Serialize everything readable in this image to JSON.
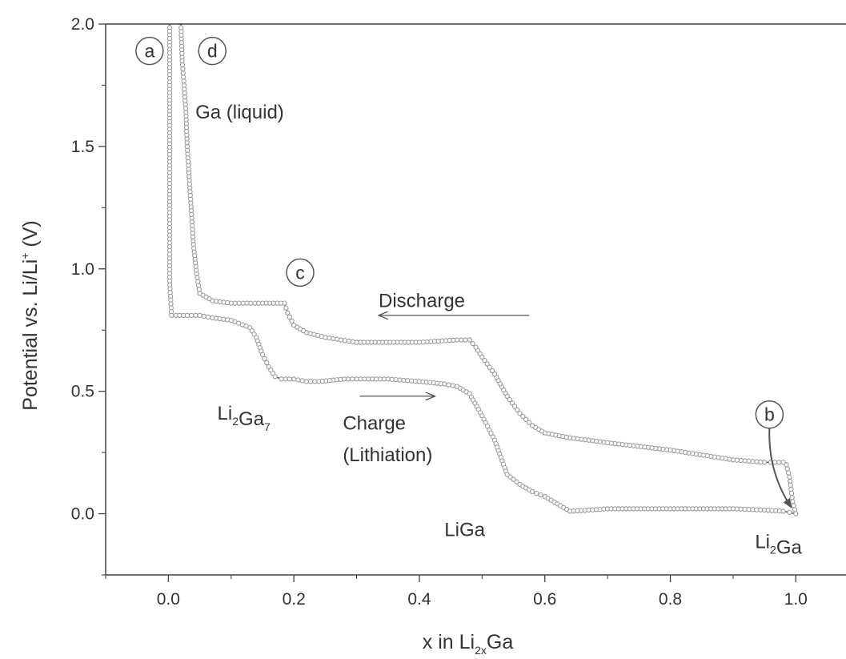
{
  "chart_data": {
    "type": "scatter",
    "title": "",
    "xlabel": "x in Li2xGa",
    "ylabel": "Potential vs. Li/Li+ (V)",
    "xlabel_parts": [
      {
        "text": "x in Li",
        "sub": false
      },
      {
        "text": "2x",
        "sub": true
      },
      {
        "text": "Ga",
        "sub": false
      }
    ],
    "ylabel_parts": [
      {
        "text": "Potential vs. Li/Li",
        "sup": false
      },
      {
        "text": "+",
        "sup": true
      },
      {
        "text": " (V)",
        "sup": false
      }
    ],
    "xlim": [
      -0.1,
      1.08
    ],
    "ylim": [
      -0.25,
      2.0
    ],
    "x_ticks": [
      0.0,
      0.2,
      0.4,
      0.6,
      0.8,
      1.0
    ],
    "x_tick_labels": [
      "0.0",
      "0.2",
      "0.4",
      "0.6",
      "0.8",
      "1.0"
    ],
    "y_ticks": [
      0.0,
      0.5,
      1.0,
      1.5,
      2.0
    ],
    "y_tick_labels": [
      "0.0",
      "0.5",
      "1.0",
      "1.5",
      "2.0"
    ],
    "grid": false,
    "series": [
      {
        "x": [
          0.002,
          0.002,
          0.002,
          0.005,
          0.012,
          0.03,
          0.05,
          0.07,
          0.1,
          0.13,
          0.14,
          0.15,
          0.16,
          0.17,
          0.18,
          0.2,
          0.22,
          0.24,
          0.28,
          0.3,
          0.35,
          0.4,
          0.44,
          0.46,
          0.48,
          0.5,
          0.52,
          0.54,
          0.56,
          0.58,
          0.6,
          0.62,
          0.64,
          0.7,
          0.8,
          0.9,
          0.95,
          0.98,
          0.99,
          1.0
        ],
        "y": [
          2.0,
          1.2,
          0.95,
          0.81,
          0.81,
          0.81,
          0.81,
          0.8,
          0.79,
          0.76,
          0.72,
          0.65,
          0.6,
          0.56,
          0.55,
          0.55,
          0.54,
          0.54,
          0.55,
          0.55,
          0.55,
          0.54,
          0.53,
          0.52,
          0.49,
          0.4,
          0.3,
          0.16,
          0.12,
          0.09,
          0.07,
          0.04,
          0.01,
          0.02,
          0.02,
          0.02,
          0.015,
          0.01,
          0.005,
          0.0
        ]
      },
      {
        "x": [
          1.0,
          0.995,
          0.99,
          0.985,
          0.98,
          0.96,
          0.95,
          0.9,
          0.8,
          0.7,
          0.64,
          0.6,
          0.58,
          0.56,
          0.54,
          0.52,
          0.5,
          0.49,
          0.48,
          0.46,
          0.4,
          0.3,
          0.25,
          0.22,
          0.2,
          0.19,
          0.185,
          0.15,
          0.1,
          0.07,
          0.05,
          0.045,
          0.04,
          0.035,
          0.03,
          0.028,
          0.025,
          0.022,
          0.02,
          0.018,
          0.016
        ],
        "y": [
          0.0,
          0.05,
          0.15,
          0.2,
          0.21,
          0.21,
          0.21,
          0.22,
          0.26,
          0.29,
          0.31,
          0.33,
          0.36,
          0.41,
          0.48,
          0.57,
          0.64,
          0.68,
          0.71,
          0.71,
          0.7,
          0.7,
          0.72,
          0.74,
          0.77,
          0.82,
          0.86,
          0.86,
          0.86,
          0.87,
          0.9,
          0.98,
          1.1,
          1.3,
          1.5,
          1.64,
          1.75,
          1.85,
          2.0,
          2.0,
          2.0
        ]
      }
    ],
    "annotations": {
      "ga_liquid": "Ga (liquid)",
      "discharge": "Discharge",
      "charge": "Charge",
      "lithiation": "(Lithiation)",
      "liga": "LiGa",
      "li2ga7_parts": [
        {
          "text": "Li",
          "sub": false
        },
        {
          "text": "2",
          "sub": true
        },
        {
          "text": "Ga",
          "sub": false
        },
        {
          "text": "7",
          "sub": true
        }
      ],
      "li2ga_parts": [
        {
          "text": "Li",
          "sub": false
        },
        {
          "text": "2",
          "sub": true
        },
        {
          "text": "Ga",
          "sub": false
        }
      ],
      "circle_labels": [
        "a",
        "b",
        "c",
        "d"
      ]
    },
    "colors": {
      "line": "#555555",
      "marker": "#9a9a9a",
      "axis": "#444444",
      "text": "#333333"
    }
  }
}
